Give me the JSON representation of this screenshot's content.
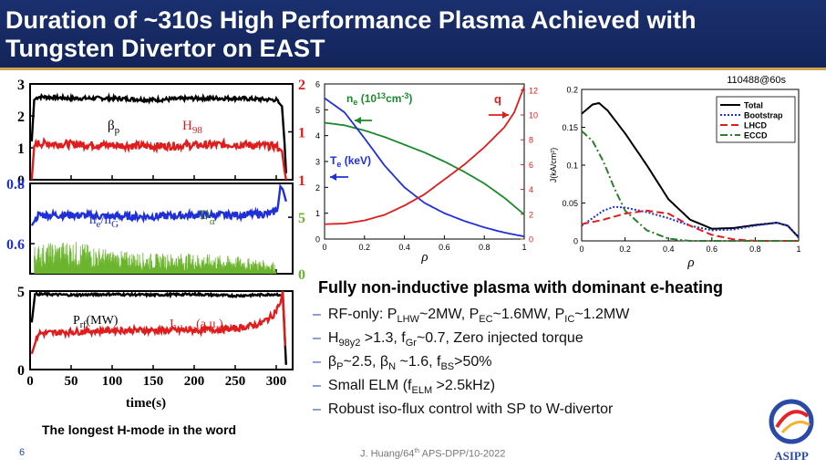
{
  "slide": {
    "title_line1": "Duration of ~310s High Performance Plasma Achieved  with",
    "title_line2": "Tungsten Divertor on EAST",
    "shot": "110488@60s",
    "caption": "The longest H-mode in the word",
    "footer": "J. Huang/64th APS-DPP/10-2022",
    "page_number": "6",
    "logo_text": "ASIPP",
    "accent": "#1a2f6e"
  },
  "bullets": {
    "heading": "Fully non-inductive plasma with dominant e-heating",
    "items": [
      "RF-only: PLHW~2MW, PEC~1.6MW, PIC~1.2MW",
      "H98y2 >1.3, fGr~0.7, Zero injected torque",
      "βP~2.5, βN ~1.6, fBS>50%",
      "Small ELM (fELM >2.5kHz)",
      "Robust iso-flux control with SP to W-divertor"
    ]
  },
  "chart_data": [
    {
      "type": "line",
      "panel": "time-traces-top",
      "xlabel": "time(s)",
      "xlim": [
        0,
        320
      ],
      "x_ticks": [
        0,
        50,
        100,
        150,
        200,
        250,
        300
      ],
      "left_axis": {
        "ylim": [
          0,
          3
        ],
        "ticks": [
          0,
          1,
          2,
          3
        ],
        "color": "#000000"
      },
      "right_axis": {
        "ylim": [
          1,
          2
        ],
        "ticks": [
          1,
          1.5,
          2
        ],
        "color": "#e11c1c"
      },
      "series": [
        {
          "name": "βp",
          "axis": "left",
          "color": "#000000",
          "x": [
            2,
            5,
            10,
            50,
            100,
            150,
            200,
            250,
            300,
            307,
            310,
            312
          ],
          "y": [
            1.2,
            2.5,
            2.6,
            2.55,
            2.55,
            2.5,
            2.55,
            2.55,
            2.5,
            2.3,
            1.2,
            0.2
          ]
        },
        {
          "name": "H98",
          "axis": "right",
          "color": "#e11c1c",
          "x": [
            2,
            5,
            10,
            50,
            100,
            150,
            200,
            250,
            300,
            307,
            310,
            312
          ],
          "y": [
            1.0,
            1.35,
            1.38,
            1.37,
            1.36,
            1.35,
            1.36,
            1.37,
            1.35,
            1.3,
            1.1,
            1.0
          ]
        }
      ]
    },
    {
      "type": "line",
      "panel": "time-traces-middle",
      "xlim": [
        0,
        320
      ],
      "left_axis": {
        "ylim": [
          0.5,
          0.8
        ],
        "ticks": [
          0.6,
          0.8
        ],
        "color": "#1f2fd9"
      },
      "right_axis": {
        "ylim": [
          0,
          8
        ],
        "ticks": [
          0,
          5
        ],
        "color": "#6bb52e"
      },
      "series": [
        {
          "name": "ne/nG",
          "axis": "left",
          "color": "#1f2fd9",
          "x": [
            2,
            10,
            50,
            100,
            150,
            200,
            250,
            295,
            302,
            305,
            308,
            312
          ],
          "y": [
            0.66,
            0.695,
            0.695,
            0.69,
            0.69,
            0.695,
            0.695,
            0.7,
            0.72,
            0.79,
            0.78,
            0.74
          ]
        },
        {
          "name": "Dα",
          "axis": "right",
          "color": "#6bb52e",
          "x": [
            5,
            50,
            100,
            150,
            200,
            250,
            300
          ],
          "y": [
            2.0,
            2.3,
            1.6,
            1.4,
            1.4,
            1.2,
            0.8
          ]
        }
      ]
    },
    {
      "type": "line",
      "panel": "time-traces-bottom",
      "xlabel": "time(s)",
      "xlim": [
        0,
        320
      ],
      "x_ticks": [
        0,
        50,
        100,
        150,
        200,
        250,
        300
      ],
      "left_axis": {
        "ylim": [
          0,
          5
        ],
        "ticks": [
          0,
          5
        ]
      },
      "series": [
        {
          "name": "Prf(MW)",
          "color": "#000000",
          "x": [
            2,
            6,
            20,
            50,
            100,
            150,
            200,
            250,
            300,
            308,
            312
          ],
          "y": [
            3.0,
            4.8,
            4.8,
            4.75,
            4.8,
            4.75,
            4.8,
            4.7,
            4.8,
            4.7,
            0.3
          ]
        },
        {
          "name": "IW-uta(a.u.)",
          "color": "#e11c1c",
          "x": [
            2,
            10,
            50,
            100,
            150,
            200,
            250,
            280,
            295,
            305,
            308,
            311
          ],
          "y": [
            1.0,
            2.3,
            2.4,
            2.5,
            2.5,
            2.5,
            2.6,
            2.9,
            3.4,
            4.2,
            5.0,
            1.5
          ]
        }
      ]
    },
    {
      "type": "line",
      "panel": "profiles",
      "xlabel": "ρ",
      "xlim": [
        0,
        1
      ],
      "x_ticks": [
        0,
        0.2,
        0.4,
        0.6,
        0.8,
        1
      ],
      "left_axis": {
        "ylim": [
          0,
          6
        ],
        "ticks": [
          0,
          1,
          2,
          3,
          4,
          5,
          6
        ]
      },
      "right_axis": {
        "ylim": [
          0,
          12.5
        ],
        "ticks": [
          0,
          2,
          4,
          6,
          8,
          10,
          12
        ],
        "color": "#e11c1c"
      },
      "series": [
        {
          "name": "ne (10^13cm^-3)",
          "axis": "left",
          "color": "#1a8a2a",
          "x": [
            0,
            0.1,
            0.2,
            0.3,
            0.4,
            0.5,
            0.6,
            0.7,
            0.8,
            0.9,
            1.0
          ],
          "y": [
            4.5,
            4.4,
            4.2,
            3.95,
            3.65,
            3.35,
            3.0,
            2.6,
            2.15,
            1.6,
            0.95
          ]
        },
        {
          "name": "Te (keV)",
          "axis": "left",
          "color": "#1f2fd9",
          "x": [
            0,
            0.1,
            0.2,
            0.3,
            0.4,
            0.5,
            0.6,
            0.7,
            0.8,
            0.9,
            1.0
          ],
          "y": [
            5.45,
            4.9,
            3.9,
            2.85,
            2.0,
            1.4,
            1.0,
            0.7,
            0.45,
            0.25,
            0.1
          ]
        },
        {
          "name": "q",
          "axis": "right",
          "color": "#e11c1c",
          "x": [
            0,
            0.1,
            0.2,
            0.3,
            0.4,
            0.5,
            0.6,
            0.7,
            0.8,
            0.9,
            0.95,
            1.0
          ],
          "y": [
            1.2,
            1.25,
            1.5,
            1.95,
            2.7,
            3.6,
            4.8,
            6.0,
            7.4,
            9.0,
            10.2,
            12.3
          ]
        }
      ]
    },
    {
      "type": "line",
      "panel": "current-density",
      "ylabel": "J(kA/cm²)",
      "xlabel": "ρ",
      "xlim": [
        0,
        1
      ],
      "ylim": [
        0,
        0.2
      ],
      "x_ticks": [
        0,
        0.2,
        0.4,
        0.6,
        0.8,
        1
      ],
      "y_ticks": [
        0,
        0.05,
        0.1,
        0.15,
        0.2
      ],
      "legend": "top-right",
      "series": [
        {
          "name": "Total",
          "color": "#000000",
          "style": "solid",
          "x": [
            0,
            0.05,
            0.08,
            0.12,
            0.2,
            0.3,
            0.4,
            0.5,
            0.6,
            0.7,
            0.8,
            0.9,
            0.95,
            1.0
          ],
          "y": [
            0.168,
            0.18,
            0.182,
            0.172,
            0.142,
            0.1,
            0.055,
            0.028,
            0.016,
            0.017,
            0.021,
            0.024,
            0.02,
            0.005
          ]
        },
        {
          "name": "Bootstrap",
          "color": "#1f2fd9",
          "style": "dotted",
          "x": [
            0,
            0.05,
            0.1,
            0.15,
            0.2,
            0.3,
            0.4,
            0.5,
            0.6,
            0.7,
            0.8,
            0.9,
            0.95,
            1.0
          ],
          "y": [
            0.02,
            0.03,
            0.04,
            0.045,
            0.044,
            0.038,
            0.03,
            0.02,
            0.014,
            0.015,
            0.02,
            0.024,
            0.02,
            0.004
          ]
        },
        {
          "name": "LHCD",
          "color": "#e11c1c",
          "style": "dashed",
          "x": [
            0,
            0.05,
            0.1,
            0.15,
            0.2,
            0.3,
            0.4,
            0.5,
            0.6,
            0.7,
            0.8,
            1.0
          ],
          "y": [
            0.022,
            0.025,
            0.028,
            0.032,
            0.036,
            0.04,
            0.036,
            0.02,
            0.008,
            0.002,
            0.0,
            0.0
          ]
        },
        {
          "name": "ECCD",
          "color": "#2e7d2e",
          "style": "dashdot",
          "x": [
            0,
            0.05,
            0.1,
            0.15,
            0.2,
            0.3,
            0.4,
            0.5,
            0.6,
            1.0
          ],
          "y": [
            0.145,
            0.132,
            0.105,
            0.07,
            0.04,
            0.014,
            0.003,
            0.0,
            0.0,
            0.0
          ]
        }
      ]
    }
  ]
}
